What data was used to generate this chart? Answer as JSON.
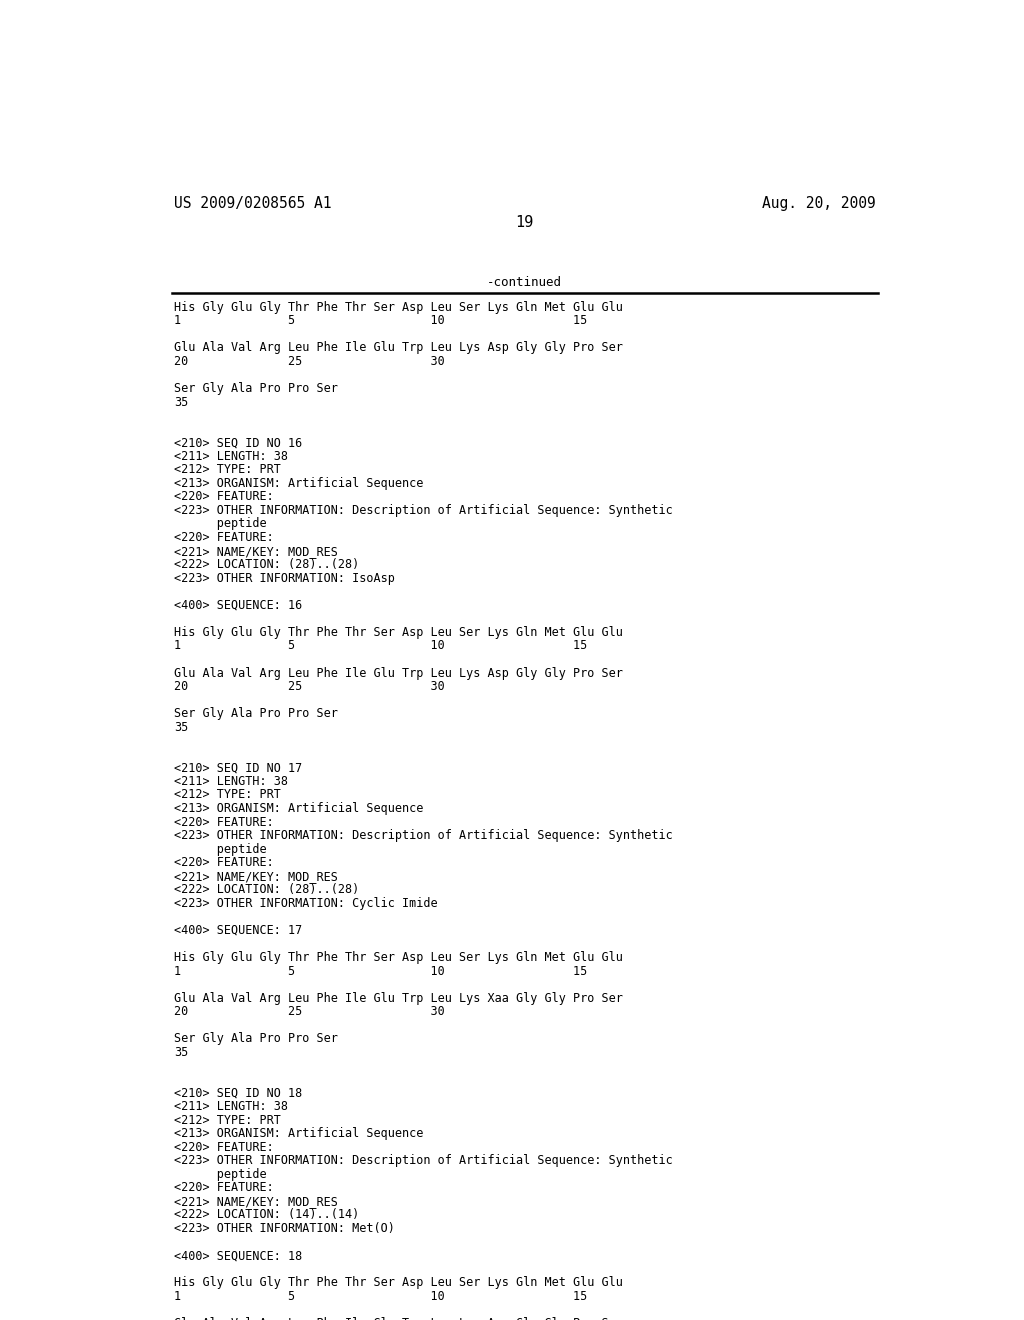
{
  "bg_color": "#ffffff",
  "header_left": "US 2009/0208565 A1",
  "header_right": "Aug. 20, 2009",
  "page_number": "19",
  "continued_label": "-continued",
  "font_size": 8.5,
  "header_font_size": 10.5,
  "page_num_font_size": 11,
  "lines": [
    "His Gly Glu Gly Thr Phe Thr Ser Asp Leu Ser Lys Gln Met Glu Glu",
    "1               5                   10                  15",
    "",
    "Glu Ala Val Arg Leu Phe Ile Glu Trp Leu Lys Asp Gly Gly Pro Ser",
    "20              25                  30",
    "",
    "Ser Gly Ala Pro Pro Ser",
    "35",
    "",
    "",
    "<210> SEQ ID NO 16",
    "<211> LENGTH: 38",
    "<212> TYPE: PRT",
    "<213> ORGANISM: Artificial Sequence",
    "<220> FEATURE:",
    "<223> OTHER INFORMATION: Description of Artificial Sequence: Synthetic",
    "      peptide",
    "<220> FEATURE:",
    "<221> NAME/KEY: MOD_RES",
    "<222> LOCATION: (28)..(28)",
    "<223> OTHER INFORMATION: IsoAsp",
    "",
    "<400> SEQUENCE: 16",
    "",
    "His Gly Glu Gly Thr Phe Thr Ser Asp Leu Ser Lys Gln Met Glu Glu",
    "1               5                   10                  15",
    "",
    "Glu Ala Val Arg Leu Phe Ile Glu Trp Leu Lys Asp Gly Gly Pro Ser",
    "20              25                  30",
    "",
    "Ser Gly Ala Pro Pro Ser",
    "35",
    "",
    "",
    "<210> SEQ ID NO 17",
    "<211> LENGTH: 38",
    "<212> TYPE: PRT",
    "<213> ORGANISM: Artificial Sequence",
    "<220> FEATURE:",
    "<223> OTHER INFORMATION: Description of Artificial Sequence: Synthetic",
    "      peptide",
    "<220> FEATURE:",
    "<221> NAME/KEY: MOD_RES",
    "<222> LOCATION: (28)..(28)",
    "<223> OTHER INFORMATION: Cyclic Imide",
    "",
    "<400> SEQUENCE: 17",
    "",
    "His Gly Glu Gly Thr Phe Thr Ser Asp Leu Ser Lys Gln Met Glu Glu",
    "1               5                   10                  15",
    "",
    "Glu Ala Val Arg Leu Phe Ile Glu Trp Leu Lys Xaa Gly Gly Pro Ser",
    "20              25                  30",
    "",
    "Ser Gly Ala Pro Pro Ser",
    "35",
    "",
    "",
    "<210> SEQ ID NO 18",
    "<211> LENGTH: 38",
    "<212> TYPE: PRT",
    "<213> ORGANISM: Artificial Sequence",
    "<220> FEATURE:",
    "<223> OTHER INFORMATION: Description of Artificial Sequence: Synthetic",
    "      peptide",
    "<220> FEATURE:",
    "<221> NAME/KEY: MOD_RES",
    "<222> LOCATION: (14)..(14)",
    "<223> OTHER INFORMATION: Met(O)",
    "",
    "<400> SEQUENCE: 18",
    "",
    "His Gly Glu Gly Thr Phe Thr Ser Asp Leu Ser Lys Gln Met Glu Glu",
    "1               5                   10                  15",
    "",
    "Glu Ala Val Arg Leu Phe Ile Glu Trp Leu Lys Asn Gly Gly Pro Ser"
  ]
}
